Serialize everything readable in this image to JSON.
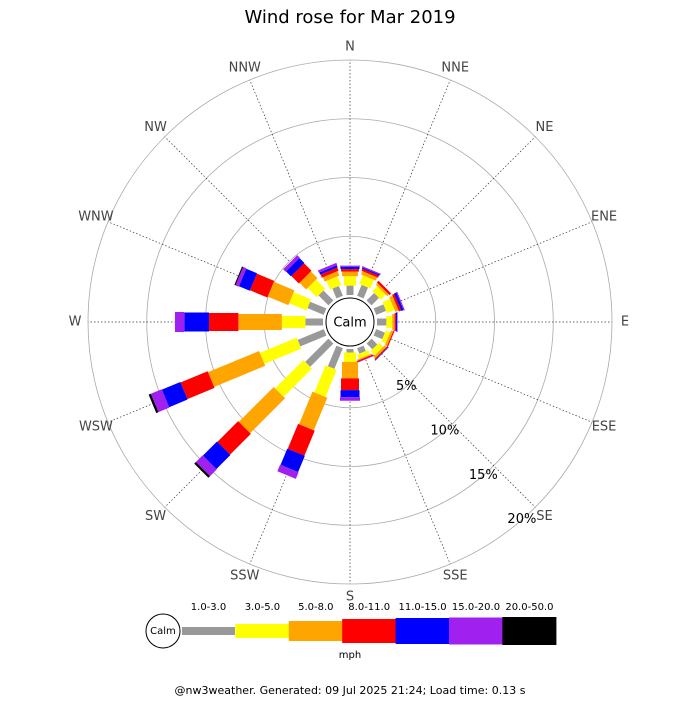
{
  "chart_data": {
    "type": "windrose",
    "title": "Wind rose for Mar 2019",
    "calm_label": "Calm",
    "unit": "mph",
    "directions": [
      "N",
      "NNE",
      "NE",
      "ENE",
      "E",
      "ESE",
      "SE",
      "SSE",
      "S",
      "SSW",
      "SW",
      "WSW",
      "W",
      "WNW",
      "NW",
      "NNW"
    ],
    "rlim": [
      0,
      20
    ],
    "rticks": [
      {
        "value": 5,
        "label": "5%"
      },
      {
        "value": 10,
        "label": "10%"
      },
      {
        "value": 15,
        "label": "15%"
      },
      {
        "value": 20,
        "label": "20%"
      }
    ],
    "series": [
      {
        "name": "1.0-3.0",
        "color": "#999999",
        "values": [
          0.8,
          1.0,
          0.9,
          0.9,
          0.8,
          0.8,
          0.7,
          0.5,
          0.3,
          1.9,
          2.8,
          2.4,
          1.5,
          1.5,
          1.2,
          0.9
        ]
      },
      {
        "name": "3.0-5.0",
        "color": "#ffff00",
        "values": [
          0.8,
          0.8,
          0.6,
          0.7,
          0.5,
          0.4,
          0.5,
          0.4,
          0.8,
          2.5,
          3.4,
          3.4,
          2.0,
          1.6,
          1.1,
          0.8
        ]
      },
      {
        "name": "5.0-8.0",
        "color": "#ffa500",
        "values": [
          0.4,
          0.3,
          0.2,
          0.3,
          0.2,
          0.2,
          0.2,
          0.1,
          1.4,
          3.0,
          4.2,
          4.7,
          3.7,
          1.9,
          0.8,
          0.4
        ]
      },
      {
        "name": "8.0-11.0",
        "color": "#ff0000",
        "values": [
          0.2,
          0.2,
          0.2,
          0.2,
          0.1,
          0.1,
          0.1,
          0.1,
          1.0,
          2.3,
          2.5,
          2.5,
          2.5,
          1.6,
          0.9,
          0.3
        ]
      },
      {
        "name": "11.0-15.0",
        "color": "#0000ff",
        "values": [
          0.2,
          0.1,
          0,
          0.2,
          0.1,
          0,
          0.05,
          0,
          0.6,
          1.5,
          1.7,
          1.7,
          2.1,
          1.0,
          0.6,
          0.2
        ]
      },
      {
        "name": "15.0-20.0",
        "color": "#a020f0",
        "values": [
          0.1,
          0.1,
          0,
          0.1,
          0.05,
          0,
          0,
          0.05,
          0.3,
          0.6,
          0.8,
          1.0,
          0.8,
          0.3,
          0.3,
          0.2
        ]
      },
      {
        "name": "20.0-50.0",
        "color": "#000000",
        "values": [
          0,
          0,
          0,
          0,
          0,
          0,
          0,
          0,
          0,
          0,
          0.2,
          0.2,
          0,
          0.1,
          0,
          0
        ]
      }
    ]
  },
  "footer": "@nw3weather. Generated: 09 Jul 2025 21:24; Load time: 0.13 s"
}
